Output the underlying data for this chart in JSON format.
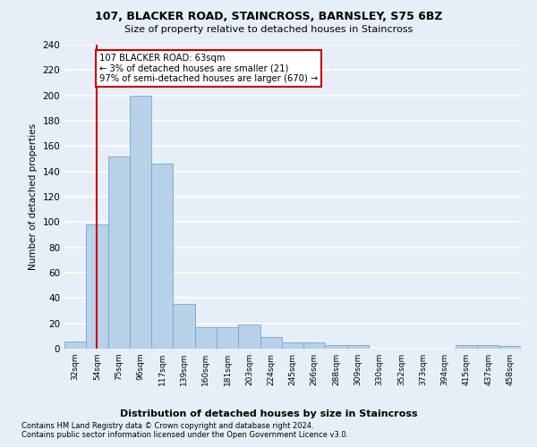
{
  "title": "107, BLACKER ROAD, STAINCROSS, BARNSLEY, S75 6BZ",
  "subtitle": "Size of property relative to detached houses in Staincross",
  "xlabel": "Distribution of detached houses by size in Staincross",
  "ylabel": "Number of detached properties",
  "bar_labels": [
    "32sqm",
    "54sqm",
    "75sqm",
    "96sqm",
    "117sqm",
    "139sqm",
    "160sqm",
    "181sqm",
    "203sqm",
    "224sqm",
    "245sqm",
    "266sqm",
    "288sqm",
    "309sqm",
    "330sqm",
    "352sqm",
    "373sqm",
    "394sqm",
    "415sqm",
    "437sqm",
    "458sqm"
  ],
  "bar_values": [
    6,
    98,
    152,
    200,
    146,
    35,
    17,
    17,
    19,
    9,
    5,
    5,
    3,
    3,
    0,
    0,
    0,
    0,
    3,
    3,
    2
  ],
  "bar_color": "#b8d0e8",
  "bar_edgecolor": "#6aaad4",
  "annotation_line1": "107 BLACKER ROAD: 63sqm",
  "annotation_line2": "← 3% of detached houses are smaller (21)",
  "annotation_line3": "97% of semi-detached houses are larger (670) →",
  "annotation_box_color": "#ffffff",
  "annotation_box_edgecolor": "#cc0000",
  "vline_color": "#cc0000",
  "vline_x": 1.0,
  "ylim": [
    0,
    240
  ],
  "yticks": [
    0,
    20,
    40,
    60,
    80,
    100,
    120,
    140,
    160,
    180,
    200,
    220,
    240
  ],
  "footer_line1": "Contains HM Land Registry data © Crown copyright and database right 2024.",
  "footer_line2": "Contains public sector information licensed under the Open Government Licence v3.0.",
  "bg_color": "#e8eef8",
  "axes_bg_color": "#e8eef8",
  "grid_color": "#ffffff"
}
